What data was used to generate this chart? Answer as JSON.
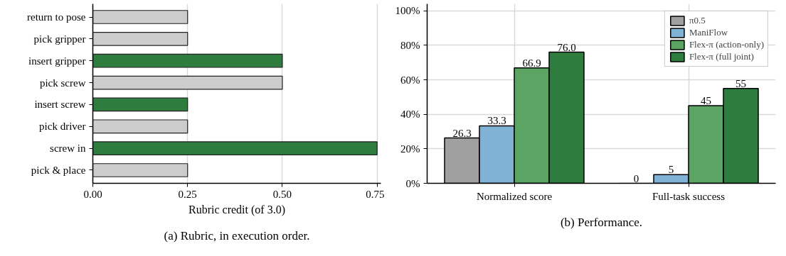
{
  "chart_data": [
    {
      "type": "bar",
      "orientation": "horizontal",
      "title": "(a) Rubric, in execution order.",
      "xlabel": "Rubric credit (of 3.0)",
      "categories": [
        "return to pose",
        "pick gripper",
        "insert gripper",
        "pick screw",
        "insert screw",
        "pick driver",
        "screw in",
        "pick & place"
      ],
      "values": [
        0.25,
        0.25,
        0.5,
        0.5,
        0.25,
        0.25,
        0.75,
        0.25
      ],
      "colors": [
        "#cccccc",
        "#cccccc",
        "#2e7d3e",
        "#cccccc",
        "#2e7d3e",
        "#cccccc",
        "#2e7d3e",
        "#cccccc"
      ],
      "xlim": [
        0,
        0.76
      ],
      "xticks": [
        {
          "value": 0,
          "label": "0.00"
        },
        0.25,
        {
          "value": 0.5,
          "label": "0.50"
        },
        0.75
      ],
      "grid": "x"
    },
    {
      "type": "bar",
      "title": "(b) Performance.",
      "categories": [
        "Normalized score",
        "Full-task success"
      ],
      "series": [
        {
          "name": "π0.5",
          "color": "#a0a0a0",
          "values": [
            26.3,
            0
          ],
          "value_labels": [
            "26.3",
            "0"
          ]
        },
        {
          "name": "ManiFlow",
          "color": "#7fb2d5",
          "values": [
            33.3,
            5
          ],
          "value_labels": [
            "33.3",
            "5"
          ]
        },
        {
          "name": "Flex-π (action-only)",
          "color": "#5ba463",
          "values": [
            66.9,
            45
          ],
          "value_labels": [
            "66.9",
            "45"
          ]
        },
        {
          "name": "Flex-π (full joint)",
          "color": "#2e7d3e",
          "values": [
            76.0,
            55
          ],
          "value_labels": [
            "76.0",
            "55"
          ]
        }
      ],
      "ylim": [
        0,
        104
      ],
      "yticks": [
        {
          "value": 0,
          "label": "0%"
        },
        {
          "value": 20,
          "label": "20%"
        },
        {
          "value": 40,
          "label": "40%"
        },
        {
          "value": 60,
          "label": "60%"
        },
        {
          "value": 80,
          "label": "80%"
        },
        {
          "value": 100,
          "label": "100%"
        }
      ],
      "grid": true,
      "legend": "top right"
    }
  ]
}
